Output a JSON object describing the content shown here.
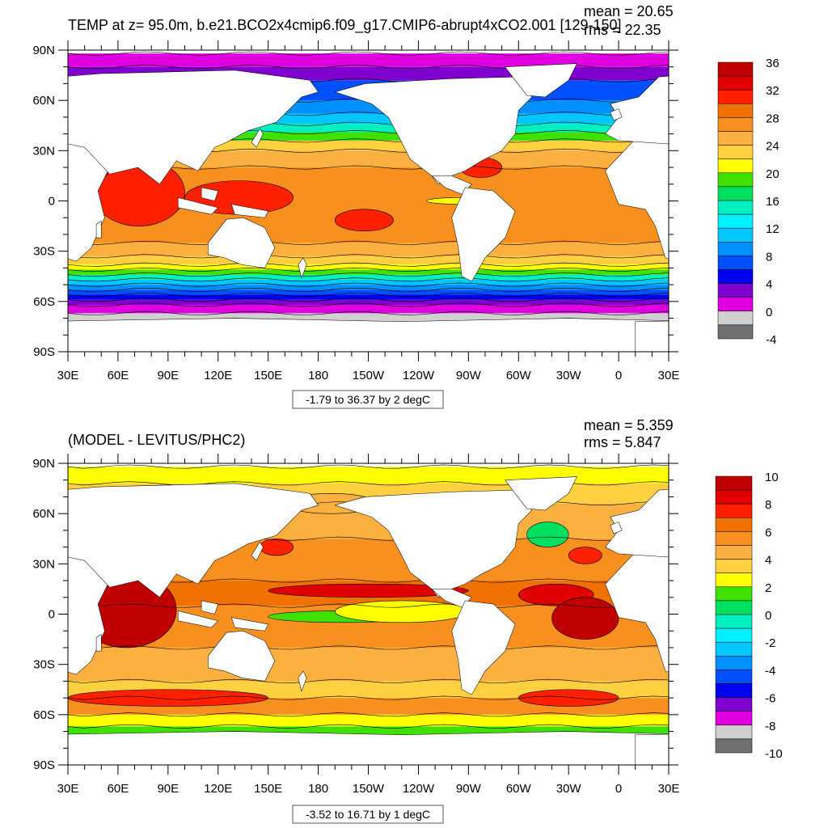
{
  "panels": [
    {
      "title": "TEMP at z=  95.0m, b.e21.BCO2x4cmip6.f09_g17.CMIP6-abrupt4xCO2.001 [129-150]",
      "stats": {
        "mean": "mean = 20.65",
        "rms": "rms = 22.35"
      },
      "range_label": "-1.79 to 36.37 by 2 degC",
      "colorbar": {
        "tick_labels": [
          "36",
          "32",
          "28",
          "24",
          "20",
          "16",
          "12",
          "8",
          "4",
          "0",
          "-4"
        ],
        "colors_top_to_bottom": [
          "#c00000",
          "#e00000",
          "#ff2000",
          "#f07000",
          "#f89020",
          "#fbb040",
          "#ffd040",
          "#ffff00",
          "#40e000",
          "#00e060",
          "#00f0c0",
          "#00f0ff",
          "#00c8ff",
          "#0090ff",
          "#0050ff",
          "#0000f0",
          "#8000d0",
          "#e000e0",
          "#d0d0d0",
          "#707070"
        ]
      },
      "map_fill": {
        "bands": [
          {
            "lat_min": -78,
            "lat_max": -67,
            "color": "#d0d0d0"
          },
          {
            "lat_min": -67,
            "lat_max": -62,
            "color": "#e000e0"
          },
          {
            "lat_min": -62,
            "lat_max": -59,
            "color": "#8000d0"
          },
          {
            "lat_min": -59,
            "lat_max": -56,
            "color": "#0000f0"
          },
          {
            "lat_min": -56,
            "lat_max": -53,
            "color": "#0050ff"
          },
          {
            "lat_min": -53,
            "lat_max": -50,
            "color": "#0090ff"
          },
          {
            "lat_min": -50,
            "lat_max": -47,
            "color": "#00c8ff"
          },
          {
            "lat_min": -47,
            "lat_max": -44,
            "color": "#00f0c0"
          },
          {
            "lat_min": -44,
            "lat_max": -41,
            "color": "#40e000"
          },
          {
            "lat_min": -41,
            "lat_max": -38,
            "color": "#ffff00"
          },
          {
            "lat_min": -38,
            "lat_max": -33,
            "color": "#ffd040"
          },
          {
            "lat_min": -33,
            "lat_max": -25,
            "color": "#fbb040"
          },
          {
            "lat_min": -25,
            "lat_max": 20,
            "color": "#f89020"
          },
          {
            "lat_min": 20,
            "lat_max": 30,
            "color": "#fbb040"
          },
          {
            "lat_min": 30,
            "lat_max": 36,
            "color": "#ffd040"
          },
          {
            "lat_min": 36,
            "lat_max": 41,
            "color": "#40e000"
          },
          {
            "lat_min": 41,
            "lat_max": 46,
            "color": "#00f0c0"
          },
          {
            "lat_min": 46,
            "lat_max": 52,
            "color": "#00c8ff"
          },
          {
            "lat_min": 52,
            "lat_max": 60,
            "color": "#0090ff"
          },
          {
            "lat_min": 60,
            "lat_max": 72,
            "color": "#0050ff"
          },
          {
            "lat_min": 72,
            "lat_max": 80,
            "color": "#8000d0"
          },
          {
            "lat_min": 80,
            "lat_max": 88,
            "color": "#e000e0"
          }
        ],
        "patches": [
          {
            "lon": [
              45,
              100
            ],
            "lat": [
              -15,
              25
            ],
            "color": "#ff2000"
          },
          {
            "lon": [
              100,
              165
            ],
            "lat": [
              -8,
              12
            ],
            "color": "#ff2000"
          },
          {
            "lon": [
              190,
              225
            ],
            "lat": [
              -18,
              -5
            ],
            "color": "#ff2000"
          },
          {
            "lon": [
              265,
              290
            ],
            "lat": [
              14,
              26
            ],
            "color": "#ff2000"
          },
          {
            "lon": [
              35,
              55
            ],
            "lat": [
              12,
              28
            ],
            "color": "#ff2000"
          },
          {
            "lon": [
              245,
              285
            ],
            "lat": [
              -2,
              2
            ],
            "color": "#ffff00"
          }
        ]
      }
    },
    {
      "title": "(MODEL - LEVITUS/PHC2)",
      "stats": {
        "mean": "mean = 5.359",
        "rms": "rms = 5.847"
      },
      "range_label": "-3.52 to 16.71 by 1 degC",
      "colorbar": {
        "tick_labels": [
          "10",
          "8",
          "6",
          "4",
          "2",
          "0",
          "-2",
          "-4",
          "-6",
          "-8",
          "-10"
        ],
        "colors_top_to_bottom": [
          "#c00000",
          "#e00000",
          "#ff2000",
          "#f07000",
          "#f89020",
          "#fbb040",
          "#ffd040",
          "#ffff00",
          "#40e000",
          "#00e060",
          "#00f0c0",
          "#00f0ff",
          "#00c8ff",
          "#0090ff",
          "#0050ff",
          "#0000f0",
          "#8000d0",
          "#e000e0",
          "#d0d0d0",
          "#707070"
        ]
      },
      "map_fill": {
        "bands": [
          {
            "lat_min": -78,
            "lat_max": -67,
            "color": "#40e000"
          },
          {
            "lat_min": -67,
            "lat_max": -60,
            "color": "#ffff00"
          },
          {
            "lat_min": -60,
            "lat_max": -50,
            "color": "#f89020"
          },
          {
            "lat_min": -50,
            "lat_max": -40,
            "color": "#ffd040"
          },
          {
            "lat_min": -40,
            "lat_max": -20,
            "color": "#fbb040"
          },
          {
            "lat_min": -20,
            "lat_max": 5,
            "color": "#f89020"
          },
          {
            "lat_min": 5,
            "lat_max": 20,
            "color": "#f07000"
          },
          {
            "lat_min": 20,
            "lat_max": 45,
            "color": "#f89020"
          },
          {
            "lat_min": 45,
            "lat_max": 66,
            "color": "#fbb040"
          },
          {
            "lat_min": 66,
            "lat_max": 78,
            "color": "#ffd040"
          },
          {
            "lat_min": 78,
            "lat_max": 88,
            "color": "#ffff00"
          }
        ],
        "patches": [
          {
            "lon": [
              35,
              95
            ],
            "lat": [
              -20,
              25
            ],
            "color": "#c00000"
          },
          {
            "lon": [
              150,
              270
            ],
            "lat": [
              10,
              18
            ],
            "color": "#e00000"
          },
          {
            "lon": [
              300,
              345
            ],
            "lat": [
              5,
              18
            ],
            "color": "#e00000"
          },
          {
            "lon": [
              320,
              360
            ],
            "lat": [
              -15,
              10
            ],
            "color": "#c00000"
          },
          {
            "lon": [
              30,
              150
            ],
            "lat": [
              -55,
              -45
            ],
            "color": "#ff2000"
          },
          {
            "lon": [
              300,
              360
            ],
            "lat": [
              -55,
              -45
            ],
            "color": "#ff2000"
          },
          {
            "lon": [
              150,
              240
            ],
            "lat": [
              -5,
              2
            ],
            "color": "#40e000"
          },
          {
            "lon": [
              190,
              270
            ],
            "lat": [
              -5,
              8
            ],
            "color": "#ffff00"
          },
          {
            "lon": [
              305,
              330
            ],
            "lat": [
              40,
              55
            ],
            "color": "#00e060"
          },
          {
            "lon": [
              330,
              350
            ],
            "lat": [
              30,
              40
            ],
            "color": "#ff2000"
          },
          {
            "lon": [
              145,
              165
            ],
            "lat": [
              35,
              45
            ],
            "color": "#ff2000"
          },
          {
            "lon": [
              160,
              215
            ],
            "lat": [
              60,
              72
            ],
            "color": "#fbb040"
          }
        ]
      }
    }
  ],
  "axes": {
    "x_tick_labels": [
      "30E",
      "60E",
      "90E",
      "120E",
      "150E",
      "180",
      "150W",
      "120W",
      "90W",
      "60W",
      "30W",
      "0",
      "30E"
    ],
    "x_tick_lon": [
      30,
      60,
      90,
      120,
      150,
      180,
      210,
      240,
      270,
      300,
      330,
      360,
      390
    ],
    "y_tick_labels": [
      "90N",
      "60N",
      "30N",
      "0",
      "30S",
      "60S",
      "90S"
    ],
    "y_tick_lat": [
      90,
      60,
      30,
      0,
      -30,
      -60,
      -90
    ],
    "lon_range": [
      30,
      390
    ],
    "lat_range": [
      -90,
      90
    ]
  },
  "colors": {
    "land": "#ffffff",
    "contour": "#000000",
    "frame": "#000000"
  },
  "chart_data": [
    {
      "type": "heatmap",
      "title": "TEMP at z=  95.0m, b.e21.BCO2x4cmip6.f09_g17.CMIP6-abrupt4xCO2.001 [129-150]",
      "stats": {
        "mean": 20.65,
        "rms": 22.35
      },
      "xlim": [
        30,
        390
      ],
      "ylim": [
        -90,
        90
      ],
      "contour_min": -1.79,
      "contour_max": 36.37,
      "contour_interval": 2,
      "units": "degC",
      "colorbar_levels": [
        -4,
        -2,
        0,
        2,
        4,
        6,
        8,
        10,
        12,
        14,
        16,
        18,
        20,
        22,
        24,
        26,
        28,
        30,
        32,
        34,
        36
      ],
      "colorbar_labels": [
        "36",
        "32",
        "28",
        "24",
        "20",
        "16",
        "12",
        "8",
        "4",
        "0",
        "-4"
      ],
      "grid": false,
      "legend": "right"
    },
    {
      "type": "heatmap",
      "title": "(MODEL - LEVITUS/PHC2)",
      "stats": {
        "mean": 5.359,
        "rms": 5.847
      },
      "xlim": [
        30,
        390
      ],
      "ylim": [
        -90,
        90
      ],
      "contour_min": -3.52,
      "contour_max": 16.71,
      "contour_interval": 1,
      "units": "degC",
      "colorbar_levels": [
        -10,
        -9,
        -8,
        -7,
        -6,
        -5,
        -4,
        -3,
        -2,
        -1,
        0,
        1,
        2,
        3,
        4,
        5,
        6,
        7,
        8,
        9,
        10
      ],
      "colorbar_labels": [
        "10",
        "8",
        "6",
        "4",
        "2",
        "0",
        "-2",
        "-4",
        "-6",
        "-8",
        "-10"
      ],
      "grid": false,
      "legend": "right"
    }
  ]
}
